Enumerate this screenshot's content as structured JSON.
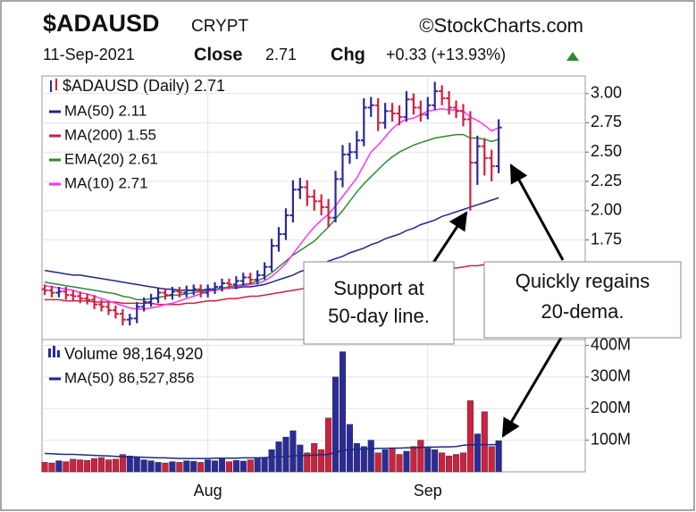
{
  "chart_data": {
    "type": "ohlc",
    "title": "$ADAUSD",
    "exchange": "CRYPT",
    "source": "©StockCharts.com",
    "date": "11-Sep-2021",
    "close_label": "Close",
    "close_value": 2.71,
    "chg_label": "Chg",
    "change": "+0.33 (+13.93%)",
    "legend": "$ADAUSD (Daily) 2.71",
    "up_color": "#2a2a9c",
    "down_color": "#d0203f",
    "categories": [
      null,
      null,
      null,
      null,
      null,
      null,
      null,
      null,
      null,
      null,
      null,
      null,
      null,
      null,
      null,
      null,
      null,
      null,
      null,
      null,
      null,
      null,
      null,
      "Aug",
      null,
      null,
      null,
      null,
      null,
      null,
      null,
      null,
      null,
      null,
      null,
      null,
      null,
      null,
      null,
      null,
      null,
      null,
      null,
      null,
      null,
      null,
      null,
      null,
      null,
      null,
      null,
      null,
      null,
      null,
      "Sep",
      null,
      null,
      null,
      null,
      null,
      null,
      null,
      null,
      null,
      null
    ],
    "ohlc": {
      "open": [
        1.33,
        1.32,
        1.3,
        1.31,
        1.28,
        1.27,
        1.25,
        1.24,
        1.2,
        1.18,
        1.15,
        1.12,
        1.07,
        1.08,
        1.18,
        1.22,
        1.25,
        1.3,
        1.28,
        1.31,
        1.3,
        1.32,
        1.33,
        1.3,
        1.33,
        1.35,
        1.38,
        1.37,
        1.4,
        1.43,
        1.41,
        1.45,
        1.52,
        1.7,
        1.8,
        1.96,
        2.18,
        2.2,
        2.12,
        2.08,
        2.03,
        1.94,
        2.27,
        2.48,
        2.5,
        2.6,
        2.88,
        2.9,
        2.75,
        2.85,
        2.83,
        2.8,
        2.95,
        2.88,
        2.82,
        2.9,
        3.02,
        2.96,
        2.88,
        2.85,
        2.78,
        2.41,
        2.55,
        2.45,
        2.38
      ],
      "high": [
        1.37,
        1.36,
        1.35,
        1.35,
        1.32,
        1.31,
        1.29,
        1.28,
        1.24,
        1.22,
        1.19,
        1.16,
        1.12,
        1.22,
        1.26,
        1.29,
        1.34,
        1.34,
        1.35,
        1.35,
        1.36,
        1.37,
        1.37,
        1.37,
        1.39,
        1.42,
        1.42,
        1.44,
        1.47,
        1.47,
        1.49,
        1.56,
        1.76,
        1.86,
        2.02,
        2.26,
        2.28,
        2.26,
        2.18,
        2.14,
        2.1,
        2.34,
        2.56,
        2.58,
        2.68,
        2.96,
        2.97,
        2.96,
        2.92,
        2.92,
        2.9,
        3.02,
        3.0,
        2.94,
        2.97,
        3.1,
        3.07,
        3.02,
        2.94,
        2.91,
        2.85,
        2.64,
        2.62,
        2.52,
        2.78
      ],
      "low": [
        1.28,
        1.26,
        1.26,
        1.24,
        1.23,
        1.21,
        1.2,
        1.16,
        1.14,
        1.11,
        1.08,
        1.02,
        1.02,
        1.04,
        1.14,
        1.18,
        1.21,
        1.24,
        1.24,
        1.26,
        1.26,
        1.28,
        1.26,
        1.26,
        1.29,
        1.31,
        1.33,
        1.33,
        1.36,
        1.37,
        1.37,
        1.41,
        1.48,
        1.65,
        1.75,
        1.9,
        2.1,
        2.04,
        2.0,
        1.96,
        1.86,
        1.9,
        2.2,
        2.4,
        2.44,
        2.55,
        2.8,
        2.68,
        2.7,
        2.76,
        2.73,
        2.76,
        2.82,
        2.76,
        2.78,
        2.86,
        2.9,
        2.82,
        2.79,
        2.72,
        2.0,
        2.22,
        2.3,
        2.25,
        2.32
      ],
      "close": [
        1.32,
        1.3,
        1.31,
        1.28,
        1.27,
        1.25,
        1.24,
        1.2,
        1.18,
        1.15,
        1.12,
        1.07,
        1.08,
        1.18,
        1.22,
        1.25,
        1.3,
        1.28,
        1.31,
        1.3,
        1.32,
        1.33,
        1.3,
        1.33,
        1.35,
        1.38,
        1.37,
        1.4,
        1.43,
        1.41,
        1.45,
        1.52,
        1.7,
        1.8,
        1.96,
        2.18,
        2.2,
        2.12,
        2.08,
        2.03,
        1.94,
        2.27,
        2.48,
        2.5,
        2.6,
        2.88,
        2.9,
        2.75,
        2.85,
        2.83,
        2.8,
        2.95,
        2.88,
        2.82,
        2.9,
        3.02,
        2.96,
        2.88,
        2.85,
        2.78,
        2.41,
        2.55,
        2.45,
        2.38,
        2.71
      ]
    },
    "ylim": [
      0.9,
      3.15
    ],
    "yticks": [
      1.75,
      {
        "value": 2,
        "label": "2.00"
      },
      2.25,
      {
        "value": 2.5,
        "label": "2.50"
      },
      2.75,
      {
        "value": 3,
        "label": "3.00"
      }
    ],
    "grid": true,
    "series": [
      {
        "name": "MA(50) 2.11",
        "color": "#1c2a86",
        "values": [
          1.49,
          1.48,
          1.47,
          1.46,
          1.45,
          1.45,
          1.44,
          1.43,
          1.42,
          1.41,
          1.4,
          1.39,
          1.38,
          1.37,
          1.36,
          1.35,
          1.34,
          1.33,
          1.33,
          1.32,
          1.32,
          1.32,
          1.32,
          1.33,
          1.33,
          1.33,
          1.34,
          1.34,
          1.35,
          1.35,
          1.36,
          1.37,
          1.39,
          1.41,
          1.43,
          1.45,
          1.48,
          1.5,
          1.52,
          1.54,
          1.57,
          1.59,
          1.61,
          1.64,
          1.66,
          1.68,
          1.71,
          1.73,
          1.76,
          1.78,
          1.8,
          1.83,
          1.85,
          1.88,
          1.9,
          1.92,
          1.95,
          1.97,
          1.99,
          2.01,
          2.03,
          2.05,
          2.07,
          2.09,
          2.11
        ]
      },
      {
        "name": "MA(200) 1.55",
        "color": "#d0203f",
        "values": [
          1.24,
          1.24,
          1.24,
          1.23,
          1.23,
          1.23,
          1.23,
          1.22,
          1.22,
          1.22,
          1.22,
          1.21,
          1.21,
          1.21,
          1.21,
          1.21,
          1.2,
          1.2,
          1.2,
          1.2,
          1.21,
          1.21,
          1.22,
          1.23,
          1.23,
          1.24,
          1.25,
          1.25,
          1.26,
          1.27,
          1.27,
          1.28,
          1.29,
          1.3,
          1.31,
          1.32,
          1.33,
          1.34,
          1.35,
          1.36,
          1.37,
          1.38,
          1.38,
          1.39,
          1.4,
          1.41,
          1.42,
          1.43,
          1.44,
          1.45,
          1.46,
          1.47,
          1.47,
          1.48,
          1.49,
          1.49,
          1.5,
          1.51,
          1.51,
          1.52,
          1.53,
          1.53,
          1.54,
          1.54,
          1.55
        ]
      },
      {
        "name": "EMA(20) 2.61",
        "color": "#2e8b2e",
        "values": [
          1.39,
          1.38,
          1.37,
          1.36,
          1.35,
          1.34,
          1.33,
          1.32,
          1.31,
          1.3,
          1.29,
          1.27,
          1.26,
          1.24,
          1.24,
          1.25,
          1.26,
          1.27,
          1.28,
          1.28,
          1.29,
          1.3,
          1.31,
          1.32,
          1.33,
          1.34,
          1.35,
          1.36,
          1.37,
          1.38,
          1.4,
          1.43,
          1.47,
          1.52,
          1.57,
          1.62,
          1.66,
          1.7,
          1.74,
          1.8,
          1.86,
          1.93,
          2.0,
          2.08,
          2.16,
          2.23,
          2.29,
          2.35,
          2.41,
          2.46,
          2.5,
          2.53,
          2.56,
          2.58,
          2.6,
          2.62,
          2.63,
          2.64,
          2.65,
          2.65,
          2.62,
          2.62,
          2.61,
          2.59,
          2.61
        ]
      },
      {
        "name": "MA(10) 2.71",
        "color": "#ff33ff",
        "values": [
          1.36,
          1.35,
          1.34,
          1.33,
          1.32,
          1.3,
          1.29,
          1.27,
          1.25,
          1.23,
          1.21,
          1.19,
          1.17,
          1.16,
          1.16,
          1.17,
          1.18,
          1.2,
          1.21,
          1.23,
          1.25,
          1.27,
          1.29,
          1.31,
          1.32,
          1.33,
          1.34,
          1.35,
          1.36,
          1.37,
          1.38,
          1.4,
          1.44,
          1.49,
          1.55,
          1.63,
          1.71,
          1.79,
          1.86,
          1.92,
          1.97,
          2.04,
          2.12,
          2.2,
          2.28,
          2.39,
          2.5,
          2.56,
          2.63,
          2.7,
          2.75,
          2.78,
          2.79,
          2.82,
          2.85,
          2.86,
          2.87,
          2.86,
          2.86,
          2.85,
          2.8,
          2.77,
          2.73,
          2.68,
          2.71
        ]
      }
    ],
    "volume": {
      "legend": "Volume 98,164,920",
      "values": [
        30000000,
        28000000,
        35000000,
        32000000,
        40000000,
        38000000,
        36000000,
        42000000,
        45000000,
        38000000,
        40000000,
        55000000,
        50000000,
        45000000,
        38000000,
        35000000,
        30000000,
        28000000,
        32000000,
        30000000,
        35000000,
        33000000,
        30000000,
        38000000,
        35000000,
        40000000,
        32000000,
        36000000,
        34000000,
        38000000,
        42000000,
        45000000,
        70000000,
        95000000,
        110000000,
        130000000,
        85000000,
        60000000,
        90000000,
        70000000,
        170000000,
        300000000,
        380000000,
        150000000,
        90000000,
        80000000,
        100000000,
        60000000,
        70000000,
        75000000,
        55000000,
        65000000,
        80000000,
        100000000,
        75000000,
        70000000,
        60000000,
        50000000,
        55000000,
        60000000,
        225000000,
        120000000,
        190000000,
        80000000,
        98164920
      ],
      "ylim": [
        0,
        410000000
      ],
      "yticks": [
        {
          "value": 100000000,
          "label": "100M"
        },
        {
          "value": 200000000,
          "label": "200M"
        },
        {
          "value": 300000000,
          "label": "300M"
        },
        {
          "value": 400000000,
          "label": "400M"
        }
      ],
      "series": [
        {
          "name": "MA(50) 86,527,856",
          "color": "#1c2a86",
          "values": [
            58000000,
            57000000,
            56000000,
            55000000,
            55000000,
            54000000,
            53000000,
            52000000,
            51000000,
            50000000,
            49000000,
            48000000,
            47000000,
            47000000,
            46000000,
            45000000,
            44000000,
            44000000,
            43000000,
            42000000,
            42000000,
            42000000,
            42000000,
            42000000,
            43000000,
            43000000,
            43000000,
            43000000,
            44000000,
            44000000,
            44000000,
            45000000,
            46000000,
            47000000,
            48000000,
            50000000,
            51000000,
            52000000,
            53000000,
            54000000,
            55000000,
            61000000,
            68000000,
            70000000,
            71000000,
            72000000,
            73000000,
            74000000,
            74000000,
            75000000,
            75000000,
            76000000,
            76000000,
            77000000,
            78000000,
            78000000,
            79000000,
            79000000,
            80000000,
            84000000,
            85000000,
            86000000,
            86000000,
            86000000,
            86527856
          ]
        }
      ]
    },
    "annotations": [
      {
        "lines": [
          "Support at",
          "50-day line."
        ]
      },
      {
        "lines": [
          "Quickly regains",
          "20-dema."
        ]
      }
    ]
  }
}
